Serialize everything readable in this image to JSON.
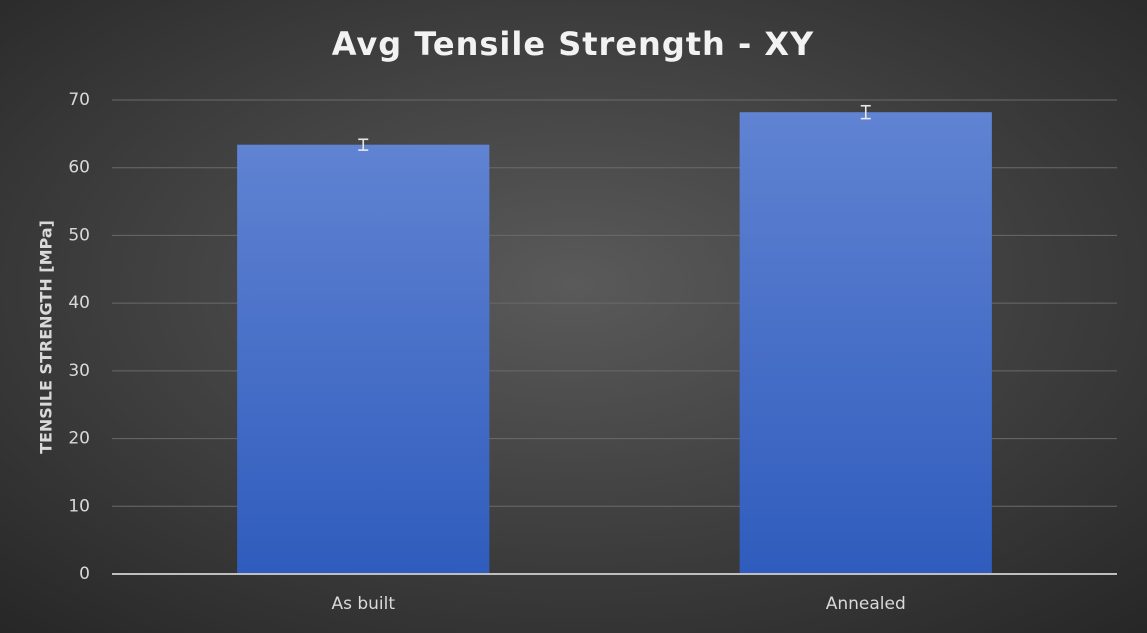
{
  "chart_data": {
    "type": "bar",
    "title": "Avg Tensile Strength - XY",
    "y_label": "TENSILE STRENGTH [MPa]",
    "categories": [
      "As built",
      "Annealed"
    ],
    "values": [
      63.4,
      68.2
    ],
    "errors": [
      0.8,
      0.95
    ],
    "color": "#4472c4",
    "ylim": [
      0,
      70
    ],
    "yticks": [
      0,
      10,
      20,
      30,
      40,
      50,
      60,
      70
    ],
    "grid": true
  }
}
